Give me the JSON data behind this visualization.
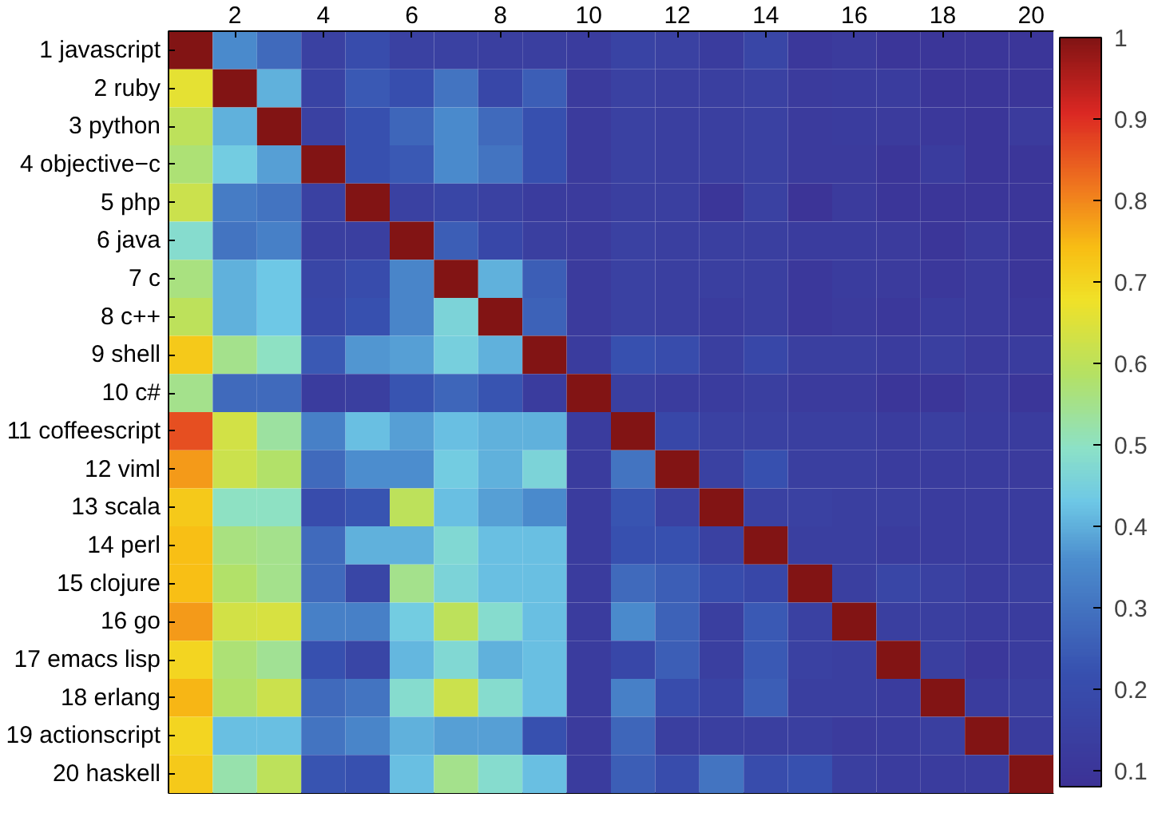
{
  "chart_data": {
    "type": "heatmap",
    "categories": [
      null,
      "2",
      null,
      "4",
      null,
      "6",
      null,
      "8",
      null,
      "10",
      null,
      "12",
      null,
      "14",
      null,
      "16",
      null,
      "18",
      null,
      "20"
    ],
    "y_categories": [
      "1 javascript",
      "2 ruby",
      "3 python",
      "4 objective−c",
      "5 php",
      "6 java",
      "7 c",
      "8 c++",
      "9 shell",
      "10 c#",
      "11 coffeescript",
      "12 viml",
      "13 scala",
      "14 perl",
      "15 clojure",
      "16 go",
      "17 emacs lisp",
      "18 erlang",
      "19 actionscript",
      "20 haskell"
    ],
    "cells": [
      [
        1,
        0.35,
        0.28,
        0.15,
        0.2,
        0.15,
        0.15,
        0.14,
        0.14,
        0.13,
        0.16,
        0.15,
        0.13,
        0.17,
        0.11,
        0.12,
        0.1,
        0.1,
        0.1,
        0.1
      ],
      [
        0.66,
        1,
        0.4,
        0.16,
        0.24,
        0.21,
        0.3,
        0.18,
        0.25,
        0.12,
        0.15,
        0.14,
        0.14,
        0.15,
        0.12,
        0.13,
        0.13,
        0.1,
        0.1,
        0.1
      ],
      [
        0.6,
        0.4,
        1,
        0.15,
        0.22,
        0.27,
        0.35,
        0.28,
        0.22,
        0.12,
        0.15,
        0.14,
        0.14,
        0.15,
        0.12,
        0.13,
        0.12,
        0.11,
        0.1,
        0.12
      ],
      [
        0.57,
        0.44,
        0.38,
        1,
        0.22,
        0.24,
        0.35,
        0.3,
        0.22,
        0.12,
        0.15,
        0.14,
        0.14,
        0.15,
        0.12,
        0.12,
        0.1,
        0.13,
        0.1,
        0.1
      ],
      [
        0.62,
        0.32,
        0.3,
        0.15,
        1,
        0.15,
        0.17,
        0.15,
        0.13,
        0.12,
        0.14,
        0.14,
        0.1,
        0.15,
        0.09,
        0.12,
        0.1,
        0.1,
        0.1,
        0.1
      ],
      [
        0.48,
        0.3,
        0.33,
        0.14,
        0.14,
        1,
        0.25,
        0.18,
        0.14,
        0.12,
        0.15,
        0.14,
        0.14,
        0.14,
        0.13,
        0.13,
        0.12,
        0.1,
        0.12,
        0.1
      ],
      [
        0.56,
        0.4,
        0.43,
        0.17,
        0.2,
        0.34,
        1,
        0.4,
        0.25,
        0.12,
        0.15,
        0.14,
        0.14,
        0.14,
        0.11,
        0.13,
        0.12,
        0.11,
        0.12,
        0.1
      ],
      [
        0.6,
        0.4,
        0.43,
        0.18,
        0.22,
        0.34,
        0.46,
        1,
        0.26,
        0.12,
        0.15,
        0.14,
        0.13,
        0.14,
        0.11,
        0.12,
        0.11,
        0.13,
        0.12,
        0.11
      ],
      [
        0.72,
        0.55,
        0.5,
        0.24,
        0.37,
        0.38,
        0.45,
        0.4,
        1,
        0.13,
        0.22,
        0.2,
        0.14,
        0.18,
        0.14,
        0.14,
        0.13,
        0.14,
        0.12,
        0.13
      ],
      [
        0.55,
        0.28,
        0.28,
        0.13,
        0.14,
        0.23,
        0.27,
        0.23,
        0.13,
        1,
        0.14,
        0.13,
        0.13,
        0.14,
        0.12,
        0.12,
        0.1,
        0.1,
        0.12,
        0.1
      ],
      [
        0.86,
        0.63,
        0.53,
        0.33,
        0.42,
        0.38,
        0.42,
        0.4,
        0.4,
        0.13,
        1,
        0.18,
        0.15,
        0.15,
        0.14,
        0.14,
        0.13,
        0.14,
        0.13,
        0.13
      ],
      [
        0.78,
        0.62,
        0.58,
        0.28,
        0.36,
        0.36,
        0.44,
        0.4,
        0.46,
        0.13,
        0.3,
        1,
        0.15,
        0.22,
        0.14,
        0.14,
        0.13,
        0.13,
        0.13,
        0.12
      ],
      [
        0.72,
        0.5,
        0.5,
        0.2,
        0.23,
        0.6,
        0.42,
        0.38,
        0.35,
        0.13,
        0.23,
        0.15,
        1,
        0.15,
        0.15,
        0.14,
        0.14,
        0.13,
        0.13,
        0.13
      ],
      [
        0.74,
        0.56,
        0.55,
        0.28,
        0.4,
        0.4,
        0.47,
        0.42,
        0.42,
        0.13,
        0.22,
        0.22,
        0.15,
        1,
        0.14,
        0.14,
        0.13,
        0.13,
        0.13,
        0.13
      ],
      [
        0.74,
        0.58,
        0.55,
        0.28,
        0.17,
        0.55,
        0.46,
        0.42,
        0.42,
        0.13,
        0.28,
        0.25,
        0.2,
        0.18,
        1,
        0.14,
        0.17,
        0.15,
        0.13,
        0.14
      ],
      [
        0.78,
        0.63,
        0.64,
        0.33,
        0.33,
        0.44,
        0.6,
        0.48,
        0.42,
        0.13,
        0.35,
        0.26,
        0.14,
        0.24,
        0.15,
        1,
        0.14,
        0.14,
        0.13,
        0.13
      ],
      [
        0.7,
        0.57,
        0.54,
        0.22,
        0.17,
        0.41,
        0.47,
        0.4,
        0.42,
        0.13,
        0.18,
        0.25,
        0.14,
        0.24,
        0.15,
        0.14,
        1,
        0.14,
        0.11,
        0.13
      ],
      [
        0.75,
        0.58,
        0.62,
        0.28,
        0.3,
        0.48,
        0.62,
        0.48,
        0.42,
        0.13,
        0.33,
        0.2,
        0.16,
        0.25,
        0.14,
        0.14,
        0.13,
        1,
        0.13,
        0.14
      ],
      [
        0.7,
        0.42,
        0.42,
        0.3,
        0.34,
        0.4,
        0.38,
        0.38,
        0.22,
        0.12,
        0.27,
        0.14,
        0.14,
        0.14,
        0.14,
        0.12,
        0.13,
        0.14,
        1,
        0.13
      ],
      [
        0.72,
        0.52,
        0.6,
        0.23,
        0.22,
        0.42,
        0.55,
        0.48,
        0.42,
        0.13,
        0.25,
        0.2,
        0.3,
        0.2,
        0.22,
        0.14,
        0.13,
        0.13,
        0.13,
        1
      ]
    ],
    "clim": [
      0.08,
      1
    ],
    "cticks": [
      0.1,
      0.2,
      0.3,
      0.4,
      0.5,
      0.6,
      0.7,
      0.8,
      0.9,
      1
    ]
  }
}
